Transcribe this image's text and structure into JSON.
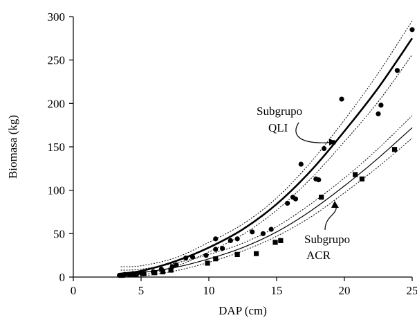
{
  "chart_data": {
    "type": "scatter",
    "xlabel": "DAP (cm)",
    "ylabel": "Biomasa (kg)",
    "xlim": [
      0,
      25
    ],
    "ylim": [
      0,
      300
    ],
    "xticks": [
      0,
      5,
      10,
      15,
      20,
      25
    ],
    "yticks": [
      0,
      50,
      100,
      150,
      200,
      250,
      300
    ],
    "grid": false,
    "colors": {
      "axis": "#000000",
      "marks": "#000000"
    },
    "annotations": [
      {
        "label": "Subgrupo",
        "label2": "QLI",
        "points_to_series": "QLI"
      },
      {
        "label": "Subgrupo",
        "label2": "ACR",
        "points_to_series": "ACR"
      }
    ],
    "series": [
      {
        "key": "QLI",
        "marker": "circle",
        "points": [
          [
            3.4,
            2
          ],
          [
            3.8,
            3
          ],
          [
            4.1,
            3
          ],
          [
            4.4,
            4
          ],
          [
            4.7,
            4
          ],
          [
            5.0,
            5
          ],
          [
            5.9,
            6
          ],
          [
            6.5,
            9
          ],
          [
            7.3,
            12
          ],
          [
            7.6,
            14
          ],
          [
            8.3,
            22
          ],
          [
            8.8,
            23
          ],
          [
            9.8,
            25
          ],
          [
            10.5,
            32
          ],
          [
            10.5,
            44
          ],
          [
            11.0,
            33
          ],
          [
            11.6,
            42
          ],
          [
            12.1,
            44
          ],
          [
            13.2,
            52
          ],
          [
            14.0,
            50
          ],
          [
            14.6,
            55
          ],
          [
            15.8,
            85
          ],
          [
            16.2,
            92
          ],
          [
            16.4,
            90
          ],
          [
            16.8,
            130
          ],
          [
            17.9,
            113
          ],
          [
            18.1,
            112
          ],
          [
            18.5,
            148
          ],
          [
            19.2,
            155
          ],
          [
            19.8,
            205
          ],
          [
            22.5,
            188
          ],
          [
            22.7,
            198
          ],
          [
            23.9,
            238
          ],
          [
            25.0,
            285
          ]
        ],
        "fit": {
          "x": [
            3.5,
            5,
            7.5,
            10,
            12.5,
            15,
            17.5,
            20,
            22.5,
            25
          ],
          "y": [
            4,
            7,
            18,
            34,
            55,
            84,
            122,
            168,
            218,
            275
          ],
          "ci_lower": [
            0,
            2,
            12,
            29,
            49,
            77,
            113,
            156,
            202,
            256
          ],
          "ci_upper": [
            12,
            13,
            22,
            40,
            61,
            91,
            132,
            181,
            235,
            295
          ]
        }
      },
      {
        "key": "ACR",
        "marker": "square",
        "points": [
          [
            3.6,
            2
          ],
          [
            4.2,
            3
          ],
          [
            4.6,
            3
          ],
          [
            5.2,
            4
          ],
          [
            6.0,
            5
          ],
          [
            6.6,
            6
          ],
          [
            7.2,
            8
          ],
          [
            9.9,
            16
          ],
          [
            10.5,
            21
          ],
          [
            12.1,
            26
          ],
          [
            13.5,
            27
          ],
          [
            14.9,
            40
          ],
          [
            15.3,
            42
          ],
          [
            18.3,
            92
          ],
          [
            20.8,
            118
          ],
          [
            21.3,
            113
          ],
          [
            23.7,
            147
          ]
        ],
        "fit": {
          "x": [
            3.5,
            5,
            7.5,
            10,
            12.5,
            15,
            17.5,
            20,
            22.5,
            25
          ],
          "y": [
            1,
            5,
            11,
            21,
            34,
            52,
            76,
            105,
            137,
            172
          ],
          "ci_lower": [
            0,
            1,
            7,
            17,
            30,
            47,
            69,
            97,
            127,
            160
          ],
          "ci_upper": [
            8,
            9,
            16,
            26,
            39,
            58,
            84,
            114,
            148,
            186
          ]
        }
      }
    ]
  }
}
